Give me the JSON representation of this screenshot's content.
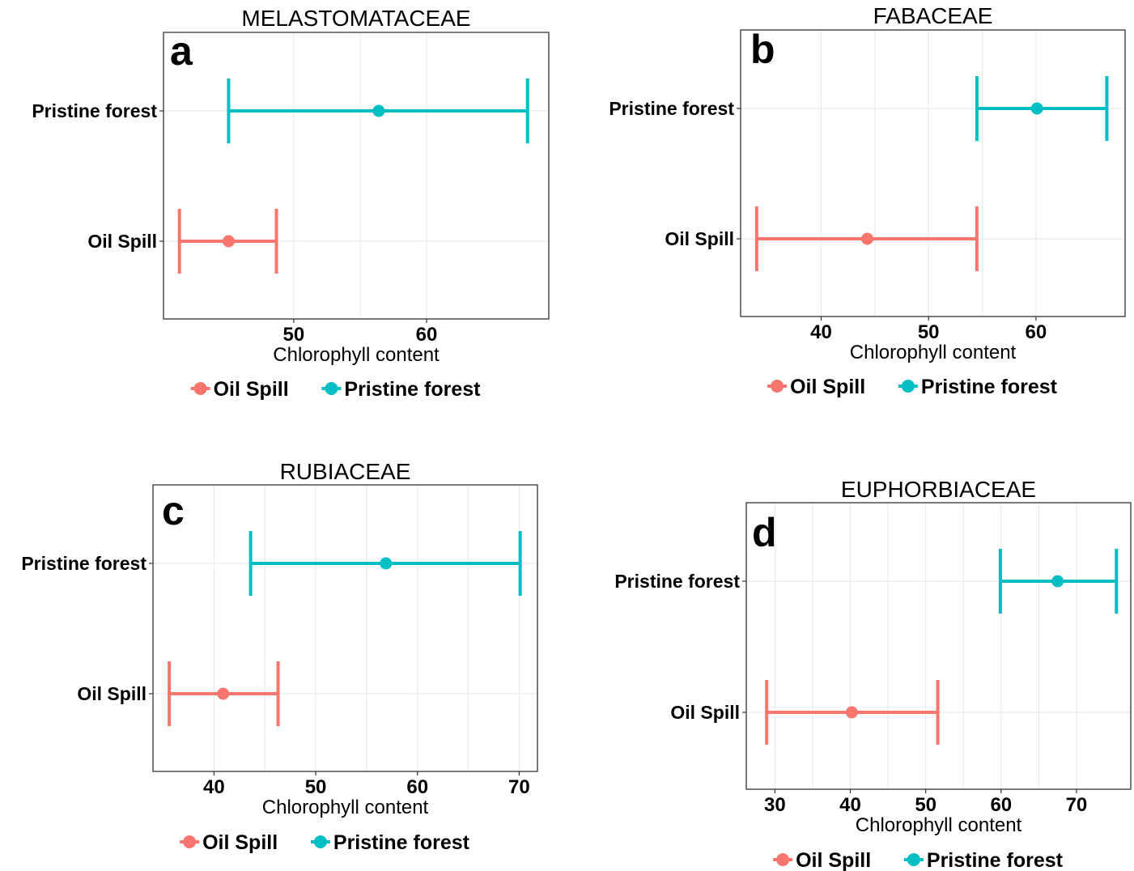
{
  "legend": [
    {
      "label": "Oil Spill",
      "color": "#f8766d"
    },
    {
      "label": "Pristine forest",
      "color": "#00bfc4"
    }
  ],
  "chart_data": [
    {
      "type": "errorbar",
      "letter": "a",
      "title": "MELASTOMATACEAE",
      "xlabel": "Chlorophyll content",
      "ylabel": "",
      "categories": [
        "Pristine forest",
        "Oil Spill"
      ],
      "xlim": [
        40.2,
        69.2
      ],
      "xticks": [
        50,
        60
      ],
      "grid": true,
      "series": [
        {
          "name": "Pristine forest",
          "color": "#00bfc4",
          "mean": 56.4,
          "low": 45.1,
          "high": 67.6
        },
        {
          "name": "Oil Spill",
          "color": "#f8766d",
          "mean": 45.1,
          "low": 41.4,
          "high": 48.7
        }
      ]
    },
    {
      "type": "errorbar",
      "letter": "b",
      "title": "FABACEAE",
      "xlabel": "Chlorophyll content",
      "ylabel": "",
      "categories": [
        "Pristine forest",
        "Oil Spill"
      ],
      "xlim": [
        32.5,
        68.3
      ],
      "xticks": [
        40,
        50,
        60
      ],
      "grid": true,
      "series": [
        {
          "name": "Pristine forest",
          "color": "#00bfc4",
          "mean": 60.1,
          "low": 54.5,
          "high": 66.6
        },
        {
          "name": "Oil Spill",
          "color": "#f8766d",
          "mean": 44.3,
          "low": 34.0,
          "high": 54.5
        }
      ]
    },
    {
      "type": "errorbar",
      "letter": "c",
      "title": "RUBIACEAE",
      "xlabel": "Chlorophyll content",
      "ylabel": "",
      "categories": [
        "Pristine forest",
        "Oil Spill"
      ],
      "xlim": [
        34.0,
        71.8
      ],
      "xticks": [
        40,
        50,
        60,
        70
      ],
      "grid": true,
      "series": [
        {
          "name": "Pristine forest",
          "color": "#00bfc4",
          "mean": 56.9,
          "low": 43.6,
          "high": 70.1
        },
        {
          "name": "Oil Spill",
          "color": "#f8766d",
          "mean": 40.9,
          "low": 35.6,
          "high": 46.3
        }
      ]
    },
    {
      "type": "errorbar",
      "letter": "d",
      "title": "EUPHORBIACEAE",
      "xlabel": "Chlorophyll content",
      "ylabel": "",
      "categories": [
        "Pristine forest",
        "Oil Spill"
      ],
      "xlim": [
        26.2,
        77.2
      ],
      "xticks": [
        30,
        40,
        50,
        60,
        70
      ],
      "grid": true,
      "series": [
        {
          "name": "Pristine forest",
          "color": "#00bfc4",
          "mean": 67.5,
          "low": 59.9,
          "high": 75.3
        },
        {
          "name": "Oil Spill",
          "color": "#f8766d",
          "mean": 40.2,
          "low": 28.9,
          "high": 51.6
        }
      ]
    }
  ]
}
